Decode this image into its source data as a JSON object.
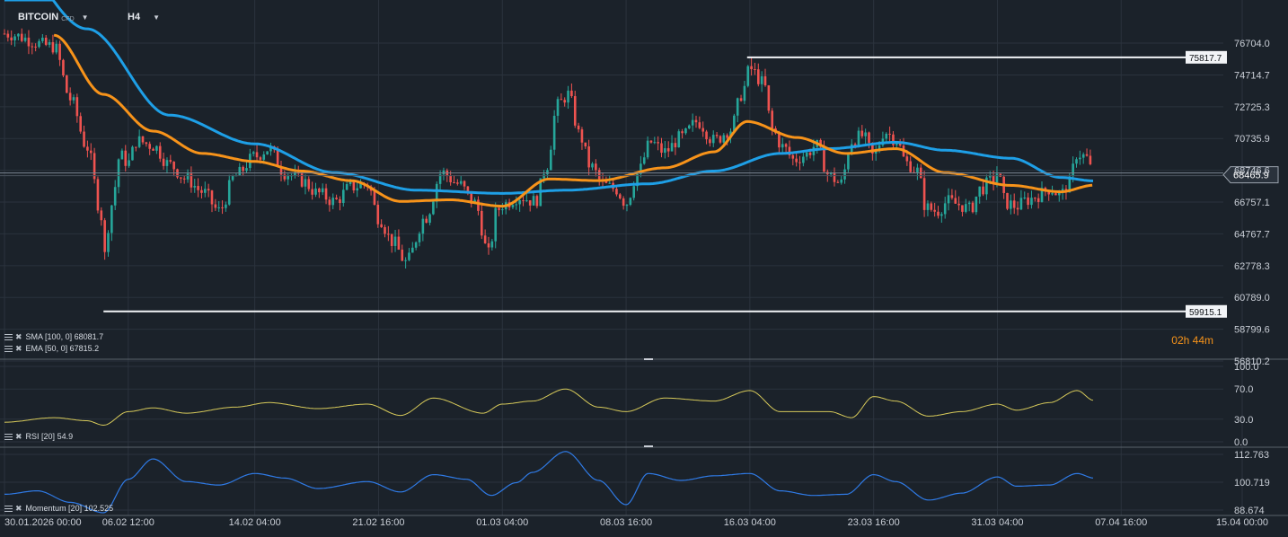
{
  "toolbar": {
    "symbol": "BITCOIN",
    "symbol_suffix": "CFD",
    "timeframe": "H4"
  },
  "colors": {
    "background": "#1b222a",
    "grid": "#2b333d",
    "up_candle": "#26a69a",
    "down_candle": "#ef5350",
    "sma": "#1e9fe6",
    "ema": "#f7931a",
    "rsi": "#d6c95a",
    "momentum": "#2f7ae5"
  },
  "indicators": {
    "sma": "SMA [100, 0] 68081.7",
    "ema": "EMA [50, 0] 67815.2",
    "rsi": "RSI [20] 54.9",
    "momentum": "Momentum [20] 102.525"
  },
  "timer": "02h 44m",
  "chart_data": [
    {
      "type": "candlestick",
      "title": "",
      "y_ticks": [
        "76704.0",
        "74714.7",
        "72725.3",
        "70735.9",
        "68746.6",
        "66757.1",
        "64767.7",
        "62778.3",
        "60789.0",
        "58799.6",
        "56810.2"
      ],
      "ylim": [
        56810.2,
        77550
      ],
      "last_price": "68465.9",
      "last_price_value": 68465.9,
      "level_lines": [
        {
          "label": "75817.7",
          "value": 75817.7,
          "from": "16.03 00:00"
        },
        {
          "label": "59915.1",
          "value": 59915.1,
          "from": "05.02 00:00"
        }
      ],
      "anchors": [
        {
          "t": "30.01.2026 00:00",
          "close": 77300
        },
        {
          "t": "02.02 00:00",
          "close": 76500
        },
        {
          "t": "03.02 00:00",
          "close": 73200
        },
        {
          "t": "04.02 00:00",
          "close": 70200
        },
        {
          "t": "04.02 20:00",
          "close": 66200
        },
        {
          "t": "05.02 00:00",
          "close": 63200,
          "low": 59915.1
        },
        {
          "t": "05.02 12:00",
          "close": 66600
        },
        {
          "t": "06.02 00:00",
          "close": 69700
        },
        {
          "t": "06.02 12:00",
          "close": 69200
        },
        {
          "t": "07.02 00:00",
          "close": 70600
        },
        {
          "t": "08.02 00:00",
          "close": 70300
        },
        {
          "t": "09.02 00:00",
          "close": 69100
        },
        {
          "t": "10.02 00:00",
          "close": 68200
        },
        {
          "t": "11.02 00:00",
          "close": 67400
        },
        {
          "t": "12.02 00:00",
          "close": 66200
        },
        {
          "t": "13.02 00:00",
          "close": 68400
        },
        {
          "t": "14.02 04:00",
          "close": 69600
        },
        {
          "t": "15.02 00:00",
          "close": 70100
        },
        {
          "t": "16.02 00:00",
          "close": 68600
        },
        {
          "t": "17.02 00:00",
          "close": 68100
        },
        {
          "t": "18.02 00:00",
          "close": 67300
        },
        {
          "t": "19.02 00:00",
          "close": 66800
        },
        {
          "t": "20.02 00:00",
          "close": 67700
        },
        {
          "t": "21.02 00:00",
          "close": 67900
        },
        {
          "t": "21.02 16:00",
          "close": 65800
        },
        {
          "t": "22.02 12:00",
          "close": 64300
        },
        {
          "t": "23.02 08:00",
          "close": 63000,
          "low": 62600
        },
        {
          "t": "24.02 12:00",
          "close": 65800
        },
        {
          "t": "25.02 12:00",
          "close": 68600
        },
        {
          "t": "26.02 12:00",
          "close": 67900
        },
        {
          "t": "27.02 12:00",
          "close": 66700
        },
        {
          "t": "28.02 08:00",
          "close": 63500
        },
        {
          "t": "28.02 20:00",
          "close": 66200
        },
        {
          "t": "01.03 04:00",
          "close": 66600
        },
        {
          "t": "02.03 04:00",
          "close": 67100
        },
        {
          "t": "03.03 04:00",
          "close": 66800
        },
        {
          "t": "03.03 20:00",
          "close": 69000
        },
        {
          "t": "04.03 12:00",
          "close": 72800
        },
        {
          "t": "05.03 04:00",
          "close": 73500
        },
        {
          "t": "05.03 20:00",
          "close": 71000
        },
        {
          "t": "06.03 12:00",
          "close": 69000
        },
        {
          "t": "07.03 08:00",
          "close": 67800
        },
        {
          "t": "08.03 00:00",
          "close": 67600
        },
        {
          "t": "08.03 16:00",
          "close": 66700
        },
        {
          "t": "09.03 08:00",
          "close": 68500
        },
        {
          "t": "10.03 04:00",
          "close": 70500
        },
        {
          "t": "11.03 00:00",
          "close": 69900
        },
        {
          "t": "12.03 00:00",
          "close": 70800
        },
        {
          "t": "13.03 00:00",
          "close": 71800
        },
        {
          "t": "14.03 00:00",
          "close": 70600
        },
        {
          "t": "15.03 00:00",
          "close": 71300
        },
        {
          "t": "15.03 16:00",
          "close": 73500
        },
        {
          "t": "16.03 04:00",
          "close": 75100,
          "high": 75817.7
        },
        {
          "t": "17.03 00:00",
          "close": 74200
        },
        {
          "t": "17.03 12:00",
          "close": 71300
        },
        {
          "t": "18.03 04:00",
          "close": 70200
        },
        {
          "t": "18.03 20:00",
          "close": 69400
        },
        {
          "t": "19.03 12:00",
          "close": 69700
        },
        {
          "t": "20.03 04:00",
          "close": 70300
        },
        {
          "t": "21.03 00:00",
          "close": 68400
        },
        {
          "t": "21.03 16:00",
          "close": 67900
        },
        {
          "t": "22.03 08:00",
          "close": 70600
        },
        {
          "t": "23.03 00:00",
          "close": 70900
        },
        {
          "t": "23.03 16:00",
          "close": 69600
        },
        {
          "t": "24.03 08:00",
          "close": 71200
        },
        {
          "t": "25.03 00:00",
          "close": 70700
        },
        {
          "t": "25.03 16:00",
          "close": 69200
        },
        {
          "t": "26.03 08:00",
          "close": 68700
        },
        {
          "t": "26.03 20:00",
          "close": 66400
        },
        {
          "t": "27.03 12:00",
          "close": 66200
        },
        {
          "t": "28.03 04:00",
          "close": 66800
        },
        {
          "t": "28.03 20:00",
          "close": 66600
        },
        {
          "t": "29.03 12:00",
          "close": 66300
        },
        {
          "t": "30.03 04:00",
          "close": 67600
        },
        {
          "t": "30.03 20:00",
          "close": 68100
        },
        {
          "t": "31.03 04:00",
          "close": 68600
        },
        {
          "t": "31.03 16:00",
          "close": 66700
        },
        {
          "t": "01.04 08:00",
          "close": 66500
        },
        {
          "t": "02.04 00:00",
          "close": 66900
        },
        {
          "t": "02.04 16:00",
          "close": 67200
        },
        {
          "t": "03.04 08:00",
          "close": 67600
        },
        {
          "t": "04.04 00:00",
          "close": 67200
        },
        {
          "t": "04.04 12:00",
          "close": 67900
        },
        {
          "t": "05.04 00:00",
          "close": 69800,
          "high": 70200
        },
        {
          "t": "05.04 12:00",
          "close": 69600
        },
        {
          "t": "06.04 00:00",
          "close": 68466
        }
      ],
      "series": [
        {
          "name": "SMA [100, 0]",
          "anchors": [
            {
              "t": "30.01.2026 00:00",
              "v": 82500
            },
            {
              "t": "04.02 00:00",
              "v": 77600
            },
            {
              "t": "09.02 00:00",
              "v": 72200
            },
            {
              "t": "14.02 04:00",
              "v": 70400
            },
            {
              "t": "19.02 00:00",
              "v": 68600
            },
            {
              "t": "24.02 00:00",
              "v": 67500
            },
            {
              "t": "01.03 04:00",
              "v": 67300
            },
            {
              "t": "05.03 00:00",
              "v": 67500
            },
            {
              "t": "10.03 00:00",
              "v": 67900
            },
            {
              "t": "14.03 00:00",
              "v": 68700
            },
            {
              "t": "18.03 00:00",
              "v": 69800
            },
            {
              "t": "21.03 00:00",
              "v": 70100
            },
            {
              "t": "25.03 00:00",
              "v": 70500
            },
            {
              "t": "28.03 00:00",
              "v": 70000
            },
            {
              "t": "01.04 00:00",
              "v": 69500
            },
            {
              "t": "04.04 00:00",
              "v": 68300
            },
            {
              "t": "06.04 00:00",
              "v": 68082
            }
          ]
        },
        {
          "name": "EMA [50, 0]",
          "anchors": [
            {
              "t": "02.02 00:00",
              "v": 77200
            },
            {
              "t": "05.02 00:00",
              "v": 73500
            },
            {
              "t": "08.02 00:00",
              "v": 71200
            },
            {
              "t": "11.02 00:00",
              "v": 69800
            },
            {
              "t": "14.02 04:00",
              "v": 69300
            },
            {
              "t": "17.02 00:00",
              "v": 68700
            },
            {
              "t": "20.02 00:00",
              "v": 68100
            },
            {
              "t": "23.02 00:00",
              "v": 66800
            },
            {
              "t": "26.02 00:00",
              "v": 66900
            },
            {
              "t": "01.03 04:00",
              "v": 66500
            },
            {
              "t": "04.03 00:00",
              "v": 68200
            },
            {
              "t": "07.03 00:00",
              "v": 68100
            },
            {
              "t": "11.03 00:00",
              "v": 68900
            },
            {
              "t": "14.03 00:00",
              "v": 69900
            },
            {
              "t": "16.03 00:00",
              "v": 71800
            },
            {
              "t": "19.03 00:00",
              "v": 70800
            },
            {
              "t": "22.03 00:00",
              "v": 69800
            },
            {
              "t": "25.03 00:00",
              "v": 70100
            },
            {
              "t": "28.03 00:00",
              "v": 68600
            },
            {
              "t": "01.04 00:00",
              "v": 67800
            },
            {
              "t": "04.04 00:00",
              "v": 67400
            },
            {
              "t": "06.04 00:00",
              "v": 67815
            }
          ]
        }
      ]
    },
    {
      "type": "line",
      "title": "RSI [20] 54.9",
      "y_ticks": [
        "100.0",
        "70.0",
        "30.0",
        "0.0"
      ],
      "ylim": [
        0,
        100
      ],
      "series": [
        {
          "name": "RSI [20]",
          "anchors": [
            {
              "t": "30.01.2026 00:00",
              "v": 26
            },
            {
              "t": "02.02 00:00",
              "v": 32
            },
            {
              "t": "04.02 00:00",
              "v": 28
            },
            {
              "t": "05.02 00:00",
              "v": 22
            },
            {
              "t": "06.02 12:00",
              "v": 40
            },
            {
              "t": "08.02 00:00",
              "v": 45
            },
            {
              "t": "10.02 00:00",
              "v": 38
            },
            {
              "t": "13.02 00:00",
              "v": 46
            },
            {
              "t": "15.02 00:00",
              "v": 52
            },
            {
              "t": "18.02 00:00",
              "v": 44
            },
            {
              "t": "21.02 00:00",
              "v": 50
            },
            {
              "t": "23.02 00:00",
              "v": 35
            },
            {
              "t": "25.02 00:00",
              "v": 58
            },
            {
              "t": "28.02 00:00",
              "v": 38
            },
            {
              "t": "01.03 04:00",
              "v": 50
            },
            {
              "t": "03.03 00:00",
              "v": 54
            },
            {
              "t": "05.03 00:00",
              "v": 70
            },
            {
              "t": "07.03 00:00",
              "v": 46
            },
            {
              "t": "08.03 16:00",
              "v": 40
            },
            {
              "t": "11.03 00:00",
              "v": 58
            },
            {
              "t": "14.03 00:00",
              "v": 54
            },
            {
              "t": "16.03 04:00",
              "v": 68
            },
            {
              "t": "18.03 00:00",
              "v": 40
            },
            {
              "t": "21.03 00:00",
              "v": 40
            },
            {
              "t": "22.03 08:00",
              "v": 32
            },
            {
              "t": "23.03 16:00",
              "v": 60
            },
            {
              "t": "25.03 00:00",
              "v": 54
            },
            {
              "t": "27.03 00:00",
              "v": 34
            },
            {
              "t": "29.03 00:00",
              "v": 40
            },
            {
              "t": "31.03 04:00",
              "v": 50
            },
            {
              "t": "01.04 08:00",
              "v": 42
            },
            {
              "t": "03.04 08:00",
              "v": 52
            },
            {
              "t": "05.04 00:00",
              "v": 68
            },
            {
              "t": "06.04 00:00",
              "v": 54.9
            }
          ]
        }
      ]
    },
    {
      "type": "line",
      "title": "Momentum [20] 102.525",
      "y_ticks": [
        "112.763",
        "100.719",
        "88.674"
      ],
      "ylim": [
        88.674,
        112.763
      ],
      "series": [
        {
          "name": "Momentum [20]",
          "anchors": [
            {
              "t": "30.01.2026 00:00",
              "v": 95.5
            },
            {
              "t": "01.02 00:00",
              "v": 97.0
            },
            {
              "t": "03.02 00:00",
              "v": 92.0
            },
            {
              "t": "05.02 00:00",
              "v": 87.5
            },
            {
              "t": "06.02 12:00",
              "v": 102.0
            },
            {
              "t": "08.02 00:00",
              "v": 110.8
            },
            {
              "t": "10.02 00:00",
              "v": 101.0
            },
            {
              "t": "12.02 00:00",
              "v": 99.5
            },
            {
              "t": "14.02 04:00",
              "v": 104.5
            },
            {
              "t": "16.02 00:00",
              "v": 102.5
            },
            {
              "t": "18.02 00:00",
              "v": 98.0
            },
            {
              "t": "21.02 00:00",
              "v": 101.0
            },
            {
              "t": "23.02 00:00",
              "v": 96.5
            },
            {
              "t": "25.02 00:00",
              "v": 104.0
            },
            {
              "t": "27.02 00:00",
              "v": 102.0
            },
            {
              "t": "28.02 12:00",
              "v": 95.0
            },
            {
              "t": "02.03 00:00",
              "v": 100.5
            },
            {
              "t": "03.03 00:00",
              "v": 105.0
            },
            {
              "t": "05.03 00:00",
              "v": 114.0
            },
            {
              "t": "07.03 00:00",
              "v": 101.5
            },
            {
              "t": "08.03 16:00",
              "v": 91.0
            },
            {
              "t": "10.03 00:00",
              "v": 104.5
            },
            {
              "t": "12.03 00:00",
              "v": 101.5
            },
            {
              "t": "14.03 00:00",
              "v": 103.5
            },
            {
              "t": "16.03 04:00",
              "v": 104.5
            },
            {
              "t": "18.03 00:00",
              "v": 97.0
            },
            {
              "t": "20.03 00:00",
              "v": 95.0
            },
            {
              "t": "22.03 00:00",
              "v": 95.5
            },
            {
              "t": "23.03 16:00",
              "v": 104.0
            },
            {
              "t": "25.03 00:00",
              "v": 101.0
            },
            {
              "t": "27.03 00:00",
              "v": 93.0
            },
            {
              "t": "29.03 00:00",
              "v": 96.0
            },
            {
              "t": "31.03 04:00",
              "v": 103.0
            },
            {
              "t": "01.04 08:00",
              "v": 99.0
            },
            {
              "t": "03.04 08:00",
              "v": 99.5
            },
            {
              "t": "05.04 00:00",
              "v": 104.5
            },
            {
              "t": "06.04 00:00",
              "v": 102.525
            }
          ]
        }
      ]
    }
  ],
  "x_axis": {
    "ticks": [
      "30.01.2026 00:00",
      "06.02 12:00",
      "14.02 04:00",
      "21.02 16:00",
      "01.03 04:00",
      "08.03 16:00",
      "16.03 04:00",
      "23.03 16:00",
      "31.03 04:00",
      "07.04 16:00",
      "15.04 00:00"
    ]
  }
}
